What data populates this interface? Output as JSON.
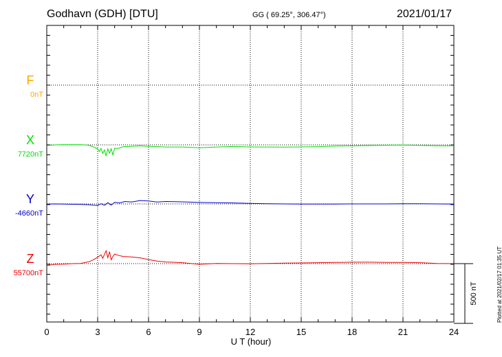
{
  "header": {
    "station": "Godhavn (GDH)  [DTU]",
    "coords": "GG ( 69.25°, 306.47°)",
    "date": "2021/01/17"
  },
  "footer": {
    "plotted": "Plotted at 2021/02/17 01:35 UT"
  },
  "colors": {
    "F": "#ffa500",
    "X": "#00dd00",
    "Y": "#0000cc",
    "Z": "#ee0000",
    "axis": "#000000"
  },
  "chart_data": {
    "type": "line",
    "xlabel": "U T (hour)",
    "xlim": [
      0,
      24
    ],
    "xticks": [
      "0",
      "3",
      "6",
      "9",
      "12",
      "15",
      "18",
      "21",
      "24"
    ],
    "scale_bar_label": "500 nT",
    "scale_bar_nT": 500,
    "traces": [
      {
        "name": "F",
        "baseline_label": "0nT",
        "baseline_nT": 0,
        "x": [],
        "values": []
      },
      {
        "name": "X",
        "baseline_label": "7720nT",
        "baseline_nT": 7720,
        "x": [
          0,
          0.5,
          1,
          1.5,
          2,
          2.4,
          2.7,
          2.9,
          3.0,
          3.1,
          3.2,
          3.3,
          3.4,
          3.5,
          3.6,
          3.7,
          3.8,
          3.9,
          4.0,
          4.2,
          4.5,
          5,
          5.5,
          6,
          6.5,
          7,
          8,
          9,
          10,
          11,
          12,
          13,
          14,
          15,
          16,
          17,
          18,
          19,
          20,
          21,
          22,
          23,
          24
        ],
        "values": [
          7714,
          7720,
          7721,
          7721,
          7721,
          7718,
          7706,
          7692,
          7688,
          7664,
          7690,
          7648,
          7678,
          7626,
          7686,
          7650,
          7688,
          7634,
          7692,
          7690,
          7704,
          7708,
          7712,
          7708,
          7705,
          7702,
          7702,
          7696,
          7702,
          7706,
          7703,
          7702,
          7701,
          7703,
          7705,
          7710,
          7712,
          7714,
          7717,
          7719,
          7716,
          7712,
          7712
        ]
      },
      {
        "name": "Y",
        "baseline_label": "-4660nT",
        "baseline_nT": -4660,
        "x": [
          0,
          0.5,
          1,
          1.5,
          2,
          2.5,
          3.0,
          3.2,
          3.4,
          3.6,
          3.8,
          4.0,
          4.3,
          4.6,
          5,
          5.5,
          6,
          6.5,
          7,
          8,
          9,
          10,
          11,
          12,
          13,
          14,
          15,
          16,
          17,
          18,
          19,
          20,
          21,
          22,
          23,
          24
        ],
        "values": [
          -4662,
          -4660,
          -4661,
          -4663,
          -4664,
          -4667,
          -4674,
          -4658,
          -4672,
          -4650,
          -4670,
          -4646,
          -4652,
          -4640,
          -4644,
          -4632,
          -4636,
          -4644,
          -4640,
          -4643,
          -4648,
          -4650,
          -4652,
          -4656,
          -4658,
          -4660,
          -4662,
          -4662,
          -4661,
          -4660,
          -4660,
          -4660,
          -4659,
          -4659,
          -4660,
          -4661
        ]
      },
      {
        "name": "Z",
        "baseline_label": "55700nT",
        "baseline_nT": 55700,
        "x": [
          0,
          0.5,
          1,
          1.5,
          2,
          2.5,
          2.8,
          3.0,
          3.2,
          3.3,
          3.4,
          3.5,
          3.6,
          3.7,
          3.8,
          3.9,
          4.0,
          4.2,
          4.5,
          5,
          5.5,
          6,
          6.5,
          7,
          8,
          9,
          10,
          11,
          12,
          13,
          14,
          15,
          16,
          17,
          18,
          19,
          20,
          21,
          22,
          23,
          24
        ],
        "values": [
          55684,
          55694,
          55696,
          55700,
          55702,
          55716,
          55736,
          55754,
          55774,
          55744,
          55778,
          55808,
          55750,
          55800,
          55732,
          55760,
          55780,
          55770,
          55760,
          55756,
          55748,
          55734,
          55722,
          55714,
          55708,
          55694,
          55702,
          55700,
          55698,
          55702,
          55704,
          55706,
          55708,
          55710,
          55712,
          55712,
          55710,
          55710,
          55708,
          55702,
          55700
        ]
      }
    ]
  }
}
